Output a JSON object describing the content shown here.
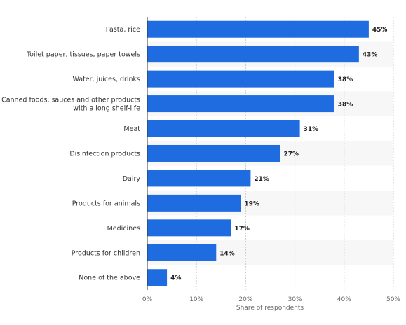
{
  "chart_data": {
    "type": "bar",
    "orientation": "horizontal",
    "categories": [
      [
        "Pasta, rice"
      ],
      [
        "Toilet paper, tissues, paper towels"
      ],
      [
        "Water, juices, drinks"
      ],
      [
        "Canned foods, sauces and other products",
        "with a long shelf-life"
      ],
      [
        "Meat"
      ],
      [
        "Disinfection products"
      ],
      [
        "Dairy"
      ],
      [
        "Products for animals"
      ],
      [
        "Medicines"
      ],
      [
        "Products for children"
      ],
      [
        "None of the above"
      ]
    ],
    "values": [
      45,
      43,
      38,
      38,
      31,
      27,
      21,
      19,
      17,
      14,
      4
    ],
    "value_labels": [
      "45%",
      "43%",
      "38%",
      "38%",
      "31%",
      "27%",
      "21%",
      "19%",
      "17%",
      "14%",
      "4%"
    ],
    "xlim": [
      0,
      50
    ],
    "x_ticks": [
      0,
      10,
      20,
      30,
      40,
      50
    ],
    "x_tick_labels": [
      "0%",
      "10%",
      "20%",
      "30%",
      "40%",
      "50%"
    ],
    "xlabel": "Share of respondents",
    "ylabel": "",
    "title": "",
    "bar_color": "#1f6ce0",
    "grid": true,
    "alternating_row_shading": true
  }
}
